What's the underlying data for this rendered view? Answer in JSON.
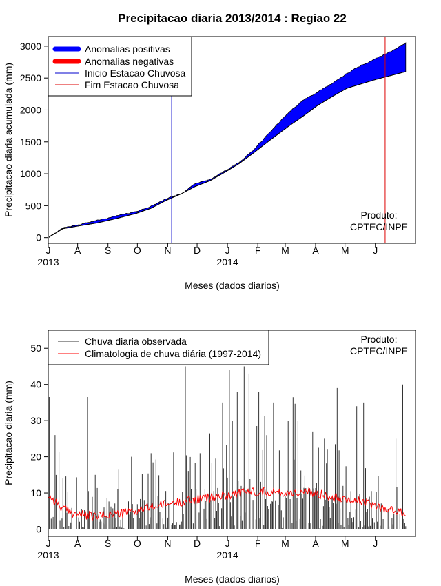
{
  "chart_data": [
    {
      "type": "area",
      "title": "Precipitacao diaria 2013/2014 : Regiao 22",
      "xlabel": "Meses (dados diarios)",
      "ylabel": "Precipitacao diaria acumulada (mm)",
      "x_range_days": [
        0,
        375
      ],
      "ylim": [
        -90,
        3150
      ],
      "y_ticks": [
        0,
        500,
        1000,
        1500,
        2000,
        2500,
        3000
      ],
      "month_ticks": [
        {
          "label": "J",
          "day": 0
        },
        {
          "label": "A",
          "day": 30
        },
        {
          "label": "S",
          "day": 61
        },
        {
          "label": "O",
          "day": 91
        },
        {
          "label": "N",
          "day": 122
        },
        {
          "label": "D",
          "day": 152
        },
        {
          "label": "J",
          "day": 183
        },
        {
          "label": "F",
          "day": 214
        },
        {
          "label": "M",
          "day": 242
        },
        {
          "label": "A",
          "day": 273
        },
        {
          "label": "M",
          "day": 303
        },
        {
          "label": "J",
          "day": 334
        }
      ],
      "year_labels": [
        {
          "label": "2013",
          "day": 0
        },
        {
          "label": "2014",
          "day": 183
        }
      ],
      "observed_cumulative": {
        "days": [
          0,
          15,
          30,
          50,
          70,
          90,
          105,
          120,
          135,
          150,
          165,
          180,
          195,
          210,
          225,
          245,
          260,
          275,
          290,
          305,
          320,
          335,
          350,
          365
        ],
        "values": [
          0,
          150,
          200,
          270,
          340,
          410,
          490,
          600,
          680,
          850,
          910,
          1040,
          1180,
          1380,
          1630,
          1950,
          2150,
          2280,
          2420,
          2570,
          2700,
          2810,
          2920,
          3050
        ]
      },
      "climatology_cumulative": {
        "days": [
          0,
          15,
          30,
          50,
          70,
          90,
          105,
          120,
          135,
          150,
          165,
          180,
          195,
          210,
          225,
          245,
          260,
          275,
          290,
          305,
          320,
          335,
          350,
          365
        ],
        "values": [
          0,
          140,
          180,
          230,
          300,
          380,
          460,
          580,
          680,
          800,
          890,
          1020,
          1160,
          1330,
          1510,
          1740,
          1900,
          2070,
          2210,
          2340,
          2410,
          2480,
          2540,
          2600
        ]
      },
      "rainy_season_start_day": 126,
      "rainy_season_end_day": 344,
      "legend_position": "top-left",
      "legend": [
        {
          "label": "Anomalias positivas",
          "color": "#0000ff",
          "style": "thick"
        },
        {
          "label": "Anomalias negativas",
          "color": "#ff0000",
          "style": "thick"
        },
        {
          "label": "Inicio Estacao Chuvosa",
          "color": "#0000cc",
          "style": "thin"
        },
        {
          "label": "Fim Estacao Chuvosa",
          "color": "#dd0000",
          "style": "thin"
        }
      ],
      "annotation": [
        "Produto:",
        "CPTEC/INPE"
      ]
    },
    {
      "type": "bar",
      "xlabel": "Meses (dados diarios)",
      "ylabel": "Precipitacao diaria (mm)",
      "x_range_days": [
        0,
        375
      ],
      "ylim": [
        -2,
        55
      ],
      "y_ticks": [
        0,
        10,
        20,
        30,
        40,
        50
      ],
      "month_ticks": [
        {
          "label": "J",
          "day": 0
        },
        {
          "label": "A",
          "day": 30
        },
        {
          "label": "S",
          "day": 61
        },
        {
          "label": "O",
          "day": 91
        },
        {
          "label": "N",
          "day": 122
        },
        {
          "label": "D",
          "day": 152
        },
        {
          "label": "J",
          "day": 183
        },
        {
          "label": "F",
          "day": 214
        },
        {
          "label": "M",
          "day": 242
        },
        {
          "label": "A",
          "day": 273
        },
        {
          "label": "M",
          "day": 303
        },
        {
          "label": "J",
          "day": 334
        }
      ],
      "year_labels": [
        {
          "label": "2013",
          "day": 0
        },
        {
          "label": "2014",
          "day": 183
        }
      ],
      "daily_peaks": [
        {
          "day": 1,
          "value": 36.5
        },
        {
          "day": 7,
          "value": 26
        },
        {
          "day": 15,
          "value": 14
        },
        {
          "day": 40,
          "value": 36.5
        },
        {
          "day": 48,
          "value": 15
        },
        {
          "day": 85,
          "value": 20
        },
        {
          "day": 105,
          "value": 21
        },
        {
          "day": 140,
          "value": 45
        },
        {
          "day": 155,
          "value": 21
        },
        {
          "day": 178,
          "value": 35
        },
        {
          "day": 185,
          "value": 44
        },
        {
          "day": 188,
          "value": 30
        },
        {
          "day": 193,
          "value": 38
        },
        {
          "day": 200,
          "value": 45
        },
        {
          "day": 205,
          "value": 43
        },
        {
          "day": 210,
          "value": 32
        },
        {
          "day": 215,
          "value": 38
        },
        {
          "day": 230,
          "value": 35
        },
        {
          "day": 245,
          "value": 30
        },
        {
          "day": 255,
          "value": 30
        },
        {
          "day": 270,
          "value": 27
        },
        {
          "day": 282,
          "value": 25
        },
        {
          "day": 295,
          "value": 39
        },
        {
          "day": 305,
          "value": 22
        },
        {
          "day": 315,
          "value": 34
        },
        {
          "day": 322,
          "value": 35
        },
        {
          "day": 355,
          "value": 25
        },
        {
          "day": 362,
          "value": 40
        }
      ],
      "climatology_daily": {
        "days": [
          0,
          15,
          30,
          45,
          60,
          75,
          90,
          105,
          120,
          135,
          150,
          165,
          180,
          195,
          210,
          225,
          240,
          255,
          270,
          285,
          300,
          315,
          330,
          345,
          360,
          365
        ],
        "values": [
          9.5,
          5.5,
          4.2,
          3.5,
          4.0,
          4.3,
          5.0,
          6.2,
          6.8,
          7.6,
          8.2,
          8.7,
          9.3,
          10.0,
          10.5,
          10.4,
          10.0,
          10.2,
          10.0,
          9.4,
          8.7,
          7.9,
          6.8,
          5.6,
          4.6,
          4.0
        ]
      },
      "legend_position": "top-left",
      "legend": [
        {
          "label": "Chuva diaria observada",
          "color": "#333333"
        },
        {
          "label": "Climatologia de chuva diária (1997-2014)",
          "color": "#ff0000"
        }
      ],
      "annotation": [
        "Produto:",
        "CPTEC/INPE"
      ]
    }
  ]
}
